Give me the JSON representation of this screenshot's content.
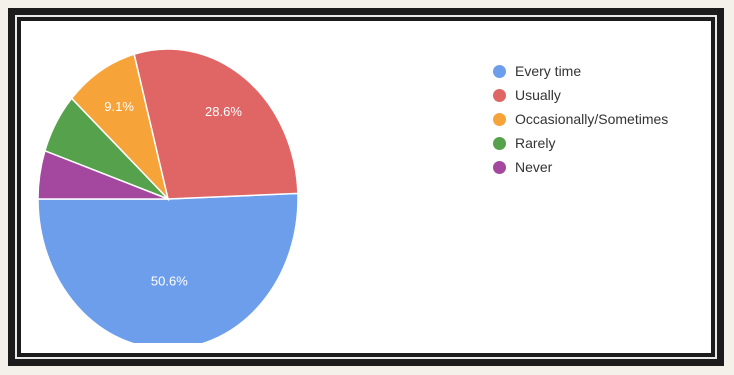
{
  "chart_data": {
    "type": "pie",
    "title": "",
    "categories": [
      "Every time",
      "Usually",
      "Occasionally/Sometimes",
      "Rarely",
      "Never"
    ],
    "values": [
      50.6,
      28.6,
      9.1,
      6.5,
      5.2
    ],
    "labels": [
      "50.6%",
      "28.6%",
      "9.1%",
      "",
      ""
    ],
    "colors": [
      "#6d9eeb",
      "#e06666",
      "#f6a43a",
      "#56a14b",
      "#a4479e"
    ],
    "legend_position": "right"
  }
}
